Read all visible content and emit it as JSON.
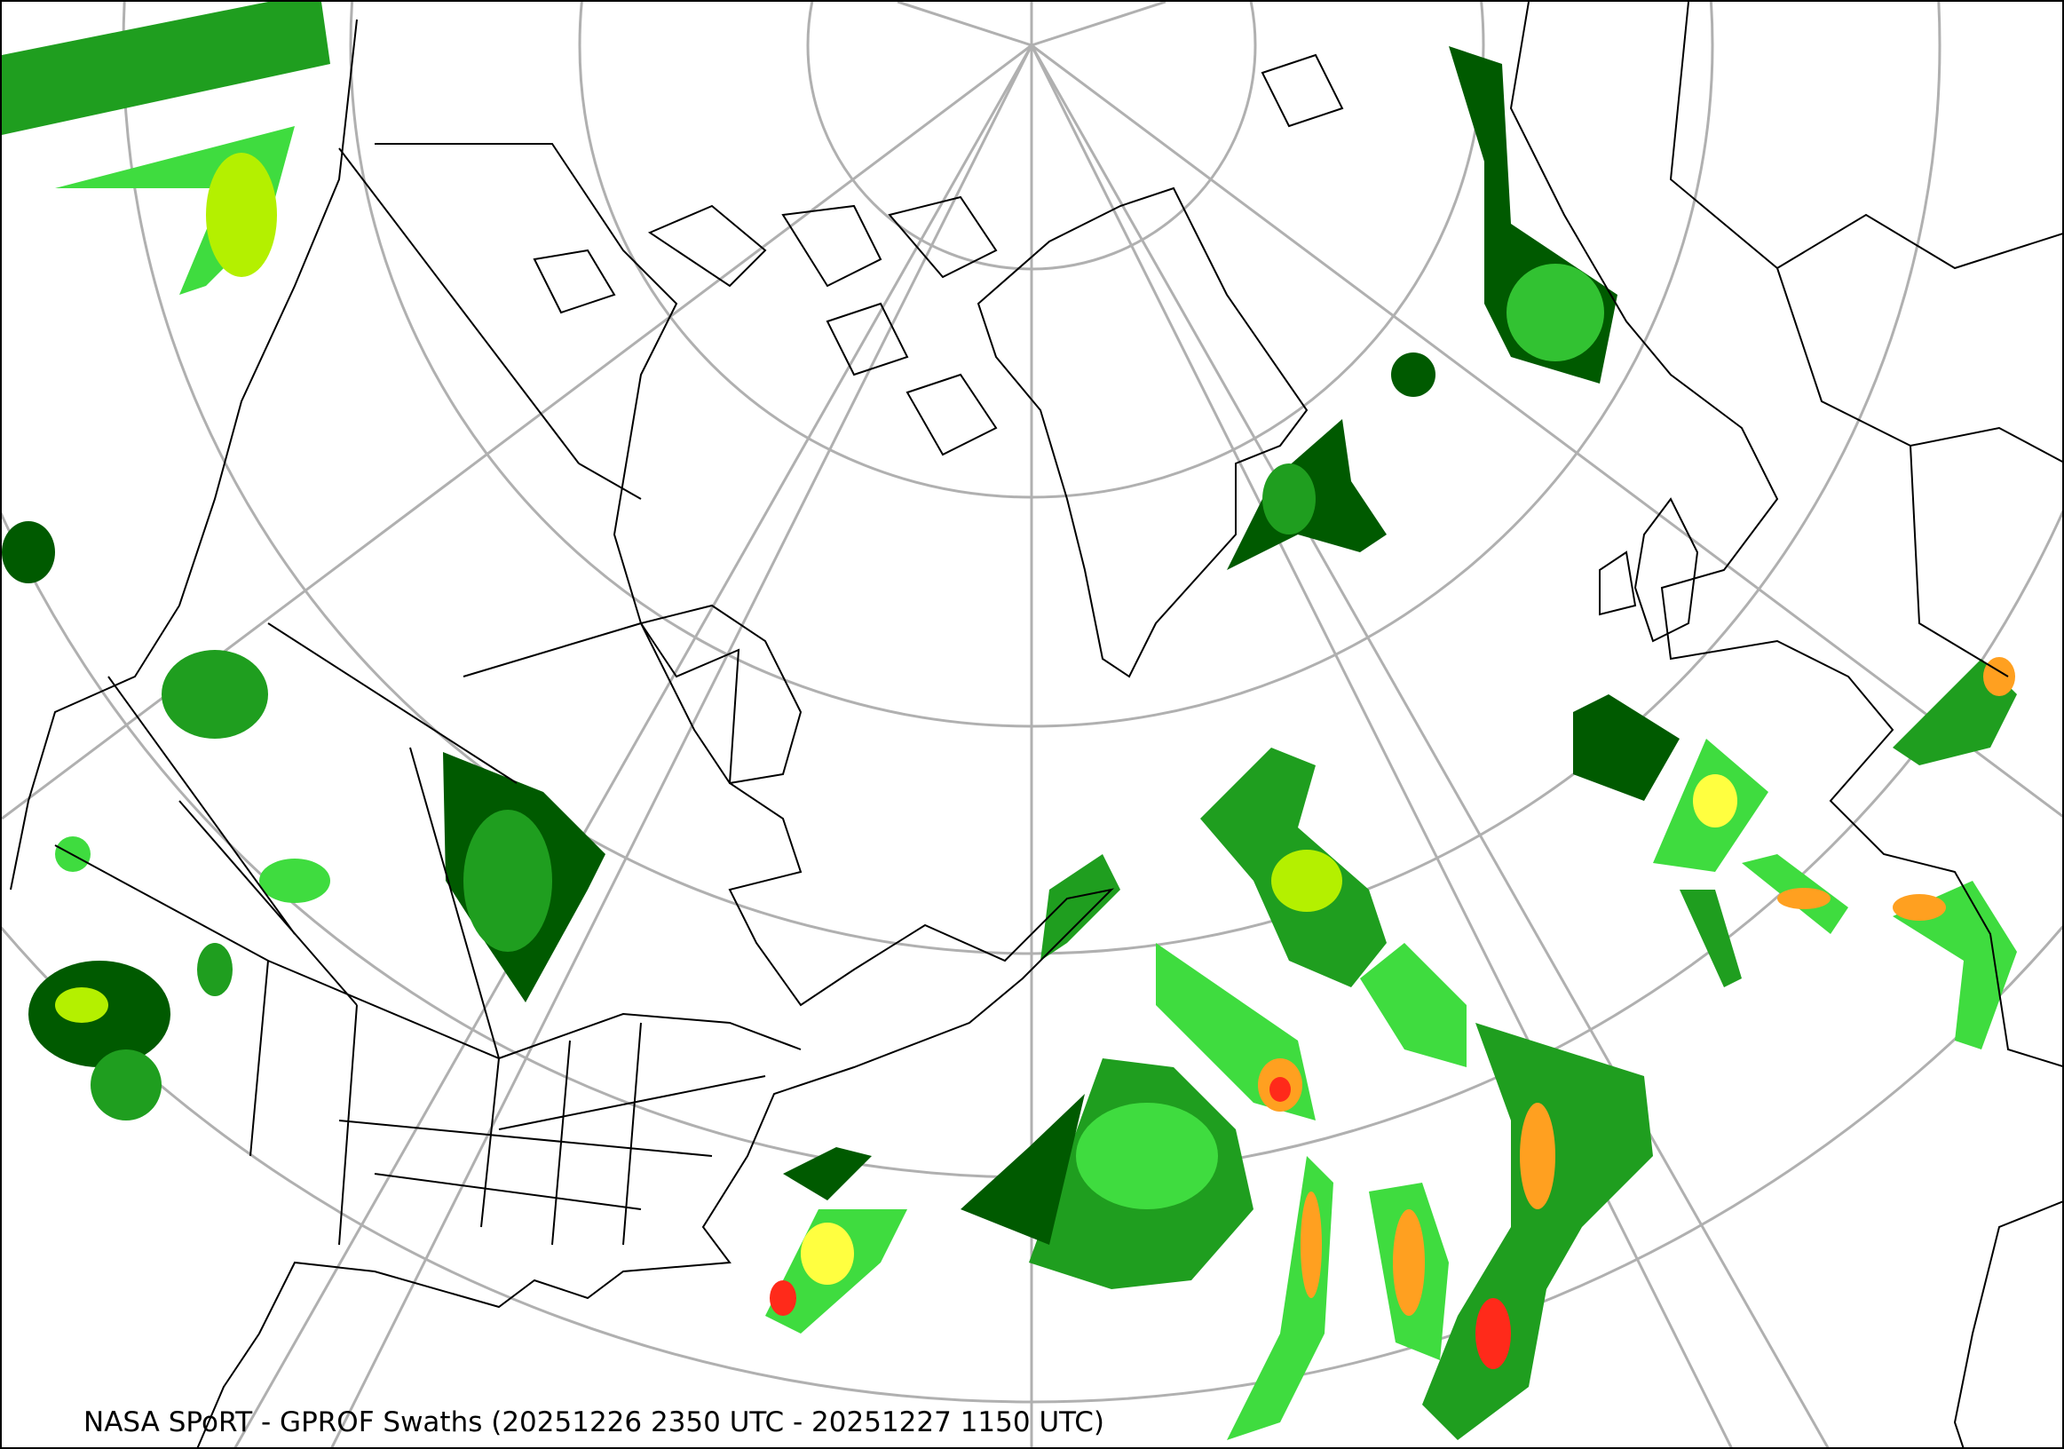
{
  "map": {
    "caption": "NASA SPoRT - GPROF Swaths (20251226 2350 UTC - 20251227 1150 UTC)",
    "projection": "north-polar stereographic",
    "graticule_color": "#b0b0b0",
    "boundary_color": "#000000",
    "precip_colors": [
      "#005a00",
      "#1f9e1f",
      "#3fdc3f",
      "#b4f000",
      "#ffff40",
      "#ffa020",
      "#ff2a1a"
    ]
  }
}
